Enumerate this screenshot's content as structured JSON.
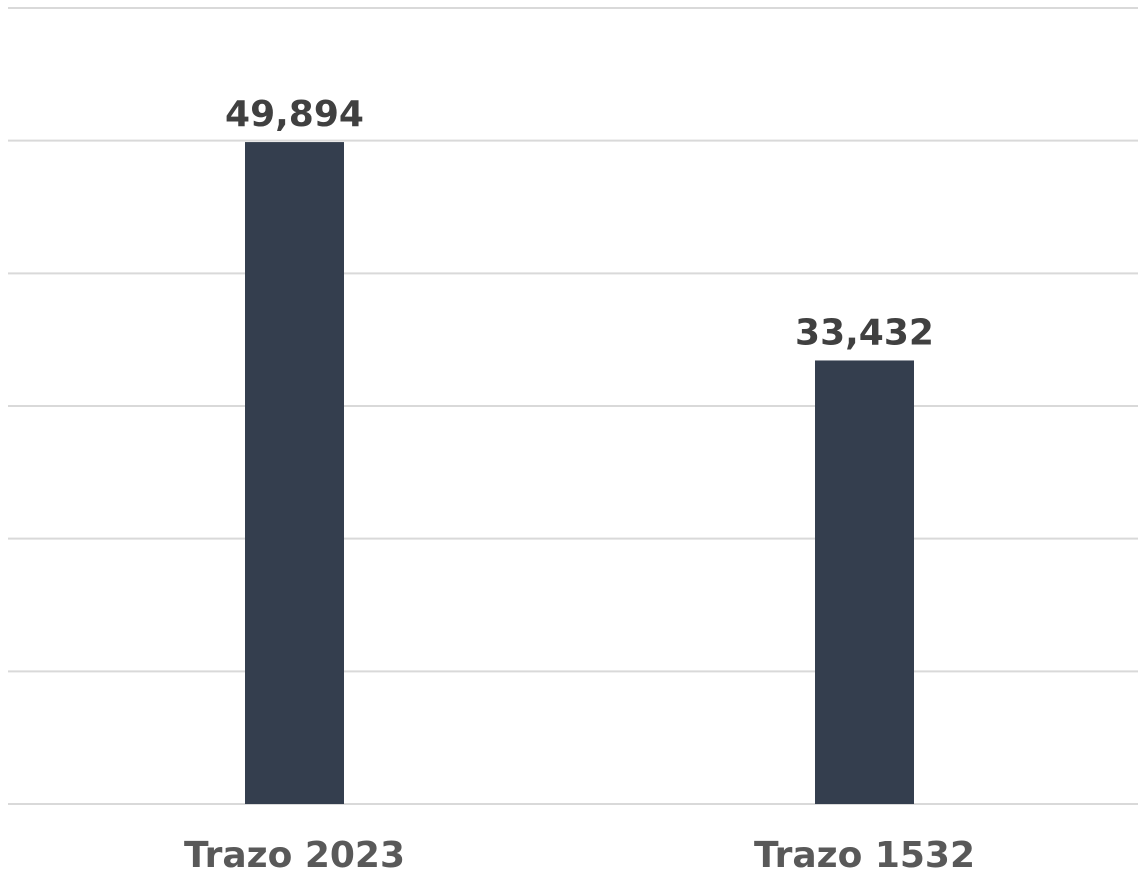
{
  "chart_data": {
    "type": "bar",
    "categories": [
      "Trazo 2023",
      "Trazo 1532"
    ],
    "values": [
      49894,
      33432
    ],
    "data_labels": [
      "49,894",
      "33,432"
    ],
    "ylim": [
      0,
      60000
    ],
    "grid": true,
    "title": "",
    "xlabel": "",
    "ylabel": ""
  },
  "colors": {
    "bar": "#343e4e",
    "value_text": "#404040",
    "category_text": "#595959",
    "grid": "#d9d9d9"
  }
}
